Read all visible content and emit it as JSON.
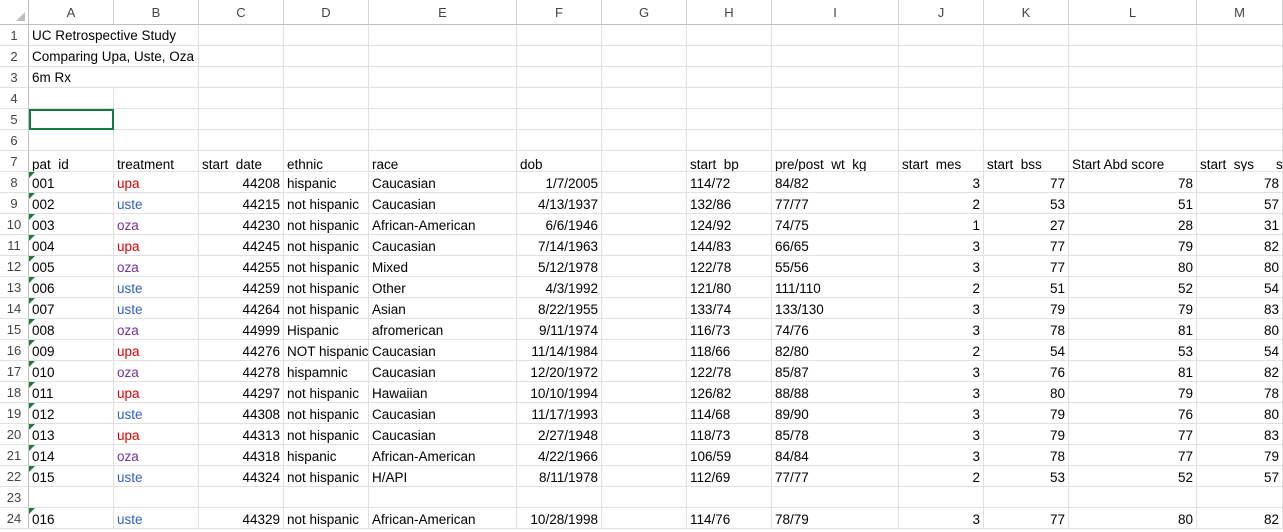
{
  "columns": [
    "A",
    "B",
    "C",
    "D",
    "E",
    "F",
    "G",
    "H",
    "I",
    "J",
    "K",
    "L",
    "M"
  ],
  "row_numbers": [
    "1",
    "2",
    "3",
    "4",
    "5",
    "6",
    "7",
    "8",
    "9",
    "10",
    "11",
    "12",
    "13",
    "14",
    "15",
    "16",
    "17",
    "18",
    "19",
    "20",
    "21",
    "22",
    "23",
    "24"
  ],
  "title_lines": [
    "UC Retrospective Study",
    "Comparing Upa, Uste, Oza",
    "6m Rx"
  ],
  "headers": [
    "pat_id",
    "treatment",
    "start_date",
    "ethnic",
    "race",
    "dob",
    "",
    "start_bp",
    "pre/post_wt_kg",
    "start_mes",
    "start_bss",
    "Start Abd score",
    "start_sys"
  ],
  "rows": [
    {
      "pat_id": "001",
      "treatment": "upa",
      "start_date": "44208",
      "ethnic": "hispanic",
      "race": "Caucasian",
      "dob": "1/7/2005",
      "start_bp": "114/72",
      "wt": "84/82",
      "mes": "3",
      "bss": "77",
      "abd": "78",
      "sys": "78"
    },
    {
      "pat_id": "002",
      "treatment": "uste",
      "start_date": "44215",
      "ethnic": "not hispanic",
      "race": "Caucasian",
      "dob": "4/13/1937",
      "start_bp": "132/86",
      "wt": "77/77",
      "mes": "2",
      "bss": "53",
      "abd": "51",
      "sys": "57"
    },
    {
      "pat_id": "003",
      "treatment": "oza",
      "start_date": "44230",
      "ethnic": "not hispanic",
      "race": "African-American",
      "dob": "6/6/1946",
      "start_bp": "124/92",
      "wt": "74/75",
      "mes": "1",
      "bss": "27",
      "abd": "28",
      "sys": "31"
    },
    {
      "pat_id": "004",
      "treatment": "upa",
      "start_date": "44245",
      "ethnic": "not hispanic",
      "race": "Caucasian",
      "dob": "7/14/1963",
      "start_bp": "144/83",
      "wt": "66/65",
      "mes": "3",
      "bss": "77",
      "abd": "79",
      "sys": "82"
    },
    {
      "pat_id": "005",
      "treatment": "oza",
      "start_date": "44255",
      "ethnic": "not hispanic",
      "race": "Mixed",
      "dob": "5/12/1978",
      "start_bp": "122/78",
      "wt": "55/56",
      "mes": "3",
      "bss": "77",
      "abd": "80",
      "sys": "80"
    },
    {
      "pat_id": "006",
      "treatment": "uste",
      "start_date": "44259",
      "ethnic": "not hispanic",
      "race": "Other",
      "dob": "4/3/1992",
      "start_bp": "121/80",
      "wt": "111/110",
      "mes": "2",
      "bss": "51",
      "abd": "52",
      "sys": "54"
    },
    {
      "pat_id": "007",
      "treatment": "uste",
      "start_date": "44264",
      "ethnic": "not hispanic",
      "race": "Asian",
      "dob": "8/22/1955",
      "start_bp": "133/74",
      "wt": "133/130",
      "mes": "3",
      "bss": "79",
      "abd": "79",
      "sys": "83"
    },
    {
      "pat_id": "008",
      "treatment": "oza",
      "start_date": "44999",
      "ethnic": "Hispanic",
      "race": "afromerican",
      "dob": "9/11/1974",
      "start_bp": "116/73",
      "wt": "74/76",
      "mes": "3",
      "bss": "78",
      "abd": "81",
      "sys": "80"
    },
    {
      "pat_id": "009",
      "treatment": "upa",
      "start_date": "44276",
      "ethnic": "NOT hispanic",
      "race": "Caucasian",
      "dob": "11/14/1984",
      "start_bp": "118/66",
      "wt": "82/80",
      "mes": "2",
      "bss": "54",
      "abd": "53",
      "sys": "54"
    },
    {
      "pat_id": "010",
      "treatment": "oza",
      "start_date": "44278",
      "ethnic": "hispamnic",
      "race": "Caucasian",
      "dob": "12/20/1972",
      "start_bp": "122/78",
      "wt": "85/87",
      "mes": "3",
      "bss": "76",
      "abd": "81",
      "sys": "82"
    },
    {
      "pat_id": "011",
      "treatment": "upa",
      "start_date": "44297",
      "ethnic": "not hispanic",
      "race": "Hawaiian",
      "dob": "10/10/1994",
      "start_bp": "126/82",
      "wt": "88/88",
      "mes": "3",
      "bss": "80",
      "abd": "79",
      "sys": "78"
    },
    {
      "pat_id": "012",
      "treatment": "uste",
      "start_date": "44308",
      "ethnic": "not hispanic",
      "race": "Caucasian",
      "dob": "11/17/1993",
      "start_bp": "114/68",
      "wt": "89/90",
      "mes": "3",
      "bss": "79",
      "abd": "76",
      "sys": "80"
    },
    {
      "pat_id": "013",
      "treatment": "upa",
      "start_date": "44313",
      "ethnic": "not hispanic",
      "race": "Caucasian",
      "dob": "2/27/1948",
      "start_bp": "118/73",
      "wt": "85/78",
      "mes": "3",
      "bss": "79",
      "abd": "77",
      "sys": "83"
    },
    {
      "pat_id": "014",
      "treatment": "oza",
      "start_date": "44318",
      "ethnic": "hispanic",
      "race": "African-American",
      "dob": "4/22/1966",
      "start_bp": "106/59",
      "wt": "84/84",
      "mes": "3",
      "bss": "78",
      "abd": "77",
      "sys": "79"
    },
    {
      "pat_id": "015",
      "treatment": "uste",
      "start_date": "44324",
      "ethnic": "not hispanic",
      "race": "H/API",
      "dob": "8/11/1978",
      "start_bp": "112/69",
      "wt": "77/77",
      "mes": "2",
      "bss": "53",
      "abd": "52",
      "sys": "57"
    },
    null,
    {
      "pat_id": "016",
      "treatment": "uste",
      "start_date": "44329",
      "ethnic": "not hispanic",
      "race": "African-American",
      "dob": "10/28/1998",
      "start_bp": "114/76",
      "wt": "78/79",
      "mes": "3",
      "bss": "77",
      "abd": "80",
      "sys": "82"
    }
  ],
  "treatment_colors": {
    "upa": "#e00000",
    "uste": "#2f5fc4",
    "oza": "#7030a0"
  },
  "header_overflow_char": "s"
}
